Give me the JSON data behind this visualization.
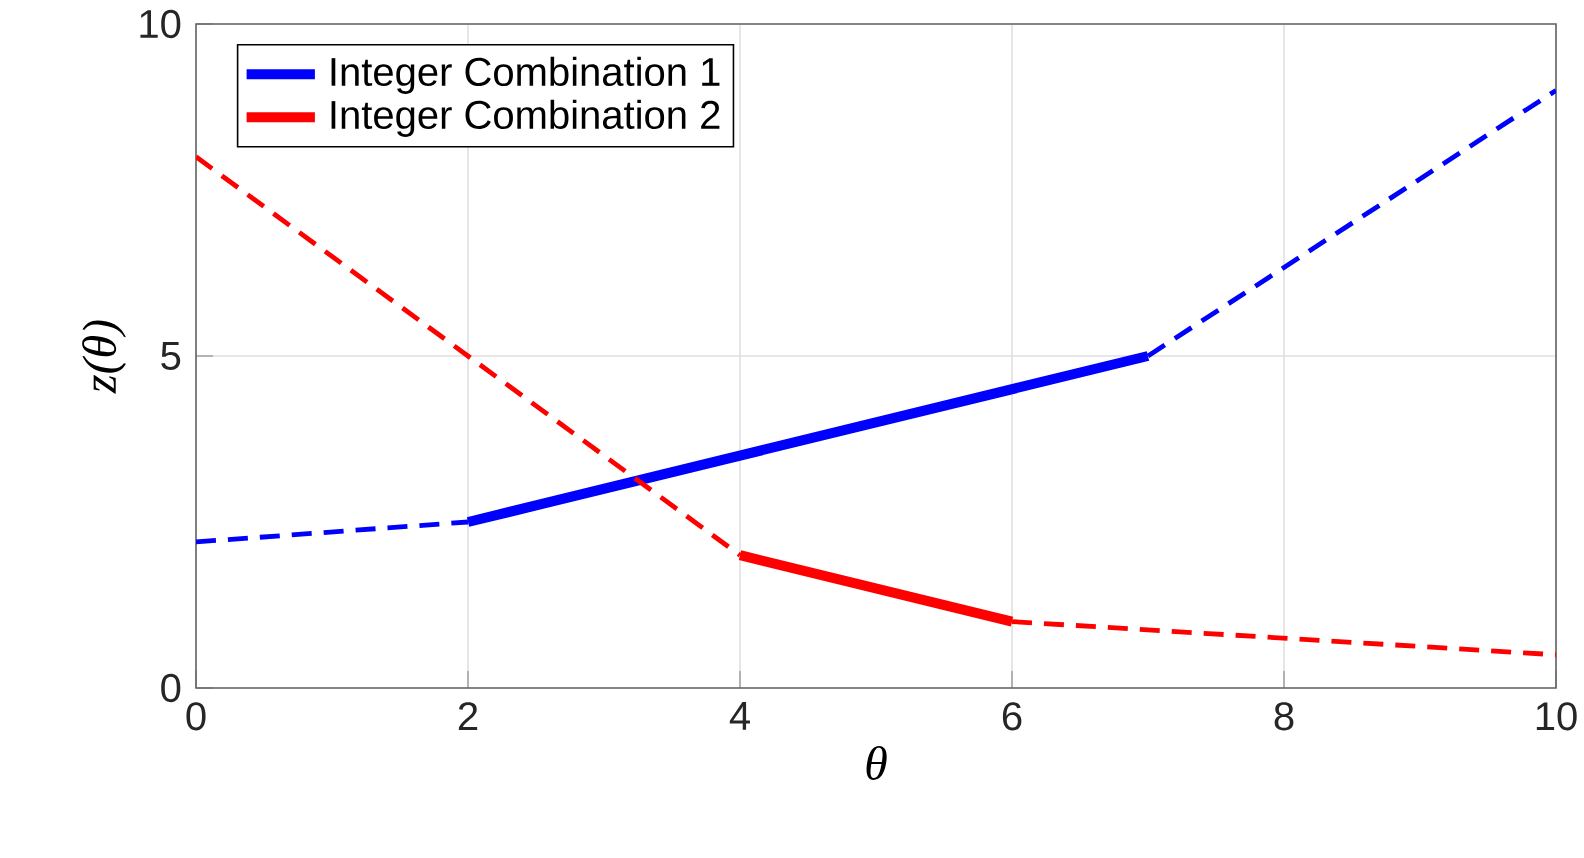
{
  "chart_data": {
    "type": "line",
    "xlabel": "θ",
    "ylabel": "z(θ)",
    "xlim": [
      0,
      10
    ],
    "ylim": [
      0,
      10
    ],
    "xticks": [
      0,
      2,
      4,
      6,
      8,
      10
    ],
    "yticks": [
      0,
      5,
      10
    ],
    "grid": true,
    "legend": "top left",
    "series": [
      {
        "name": "Integer Combination 1",
        "color": "#0000ff",
        "line_style": "solid",
        "x": [
          2,
          7
        ],
        "values": [
          2.5,
          5
        ]
      },
      {
        "name": "Integer Combination 2",
        "color": "#ff0000",
        "line_style": "solid",
        "x": [
          4,
          6
        ],
        "values": [
          2,
          1
        ]
      },
      {
        "color": "#0000ff",
        "line_style": "dashed",
        "x": [
          0,
          2
        ],
        "values": [
          2.2,
          2.5
        ]
      },
      {
        "color": "#0000ff",
        "line_style": "dashed",
        "x": [
          7,
          10
        ],
        "values": [
          5,
          9
        ]
      },
      {
        "color": "#ff0000",
        "line_style": "dashed",
        "x": [
          0,
          4
        ],
        "values": [
          8,
          2
        ]
      },
      {
        "color": "#ff0000",
        "line_style": "dashed",
        "x": [
          6,
          10
        ],
        "values": [
          1,
          0.5
        ]
      }
    ]
  }
}
